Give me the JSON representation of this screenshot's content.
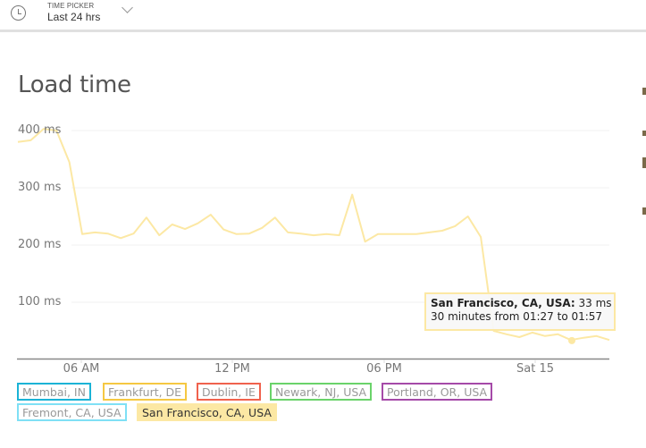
{
  "topbar": {
    "icon": "clock-icon",
    "label": "TIME PICKER",
    "value": "Last 24 hrs",
    "dropdown_icon": "chevron-down-icon"
  },
  "panel": {
    "title": "Load time"
  },
  "tooltip": {
    "location": "San Francisco, CA, USA:",
    "value": " 33 ms",
    "detail": "30 minutes from 01:27 to 01:57"
  },
  "legend": [
    {
      "label": "Mumbai, IN",
      "color": "#1ab3d6",
      "active": false
    },
    {
      "label": "Frankfurt, DE",
      "color": "#f5c842",
      "active": false
    },
    {
      "label": "Dublin, IE",
      "color": "#f0624d",
      "active": false
    },
    {
      "label": "Newark, NJ, USA",
      "color": "#6ad36a",
      "active": false
    },
    {
      "label": "Portland, OR, USA",
      "color": "#a54aa8",
      "active": false
    },
    {
      "label": "Fremont, CA, USA",
      "color": "#7fe0f5",
      "active": false
    },
    {
      "label": "San Francisco, CA, USA",
      "color": "#fce8a4",
      "active": true
    }
  ],
  "chart_data": {
    "type": "line",
    "title": "Load time",
    "xlabel": "",
    "ylabel": "",
    "y_tick_labels": [
      "400 ms",
      "300 ms",
      "200 ms",
      "100 ms"
    ],
    "y_ticks": [
      400,
      300,
      200,
      100
    ],
    "ylim": [
      0,
      400
    ],
    "x_tick_labels": [
      "06 AM",
      "12 PM",
      "06 PM",
      "Sat 15"
    ],
    "grid": true,
    "legend_position": "bottom",
    "series": [
      {
        "name": "San Francisco, CA, USA",
        "color": "#fce8a4",
        "interval": "30 minutes",
        "values": [
          380,
          383,
          403,
          400,
          345,
          219,
          222,
          220,
          212,
          220,
          248,
          217,
          236,
          228,
          238,
          253,
          227,
          219,
          220,
          230,
          248,
          222,
          220,
          217,
          219,
          217,
          288,
          206,
          219,
          219,
          219,
          219,
          222,
          225,
          233,
          250,
          214,
          50,
          44,
          39,
          47,
          41,
          44,
          34,
          38,
          41,
          34
        ]
      }
    ],
    "highlighted_point": {
      "series": "San Francisco, CA, USA",
      "value": 33,
      "label": "30 minutes from 01:27 to 01:57"
    }
  }
}
